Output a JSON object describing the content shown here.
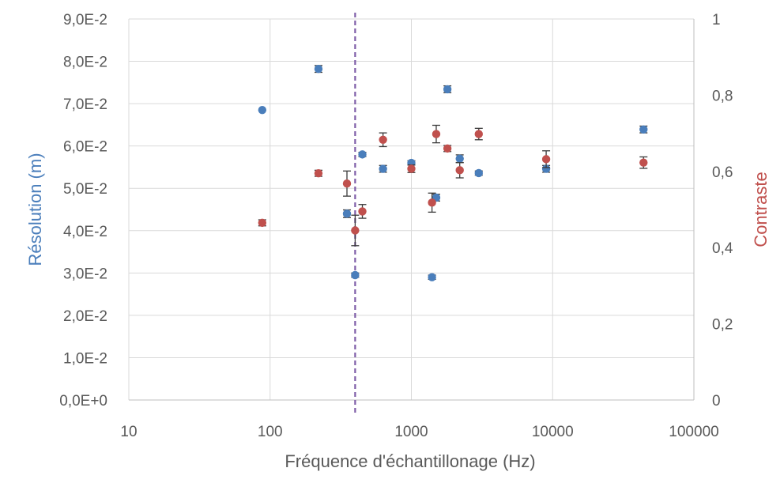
{
  "chart_data": {
    "type": "scatter",
    "xlabel": "Fréquence d'échantillonage (Hz)",
    "ylabel": "Résolution (m)",
    "y2label": "Contraste",
    "x_scale": "log",
    "xlim": [
      10,
      100000
    ],
    "x_ticks": [
      "10",
      "100",
      "1000",
      "10000",
      "100000"
    ],
    "ylim": [
      0,
      0.09
    ],
    "y_ticks": [
      "0,0E+0",
      "1,0E-2",
      "2,0E-2",
      "3,0E-2",
      "4,0E-2",
      "5,0E-2",
      "6,0E-2",
      "7,0E-2",
      "8,0E-2",
      "9,0E-2"
    ],
    "y2lim": [
      0,
      1
    ],
    "y2_ticks": [
      "0",
      "0,2",
      "0,4",
      "0,6",
      "0,8",
      "1"
    ],
    "grid": true,
    "reference_line_x": 400,
    "series": [
      {
        "axis": "left",
        "color": "#4a7ebb",
        "points": [
          {
            "x": 88,
            "y": 0.0685,
            "err": 0
          },
          {
            "x": 220,
            "y": 0.0782,
            "err": 0.0008
          },
          {
            "x": 350,
            "y": 0.044,
            "err": 0.0009
          },
          {
            "x": 400,
            "y": 0.0295,
            "err": 0.0005
          },
          {
            "x": 450,
            "y": 0.058,
            "err": 0.0005
          },
          {
            "x": 630,
            "y": 0.0546,
            "err": 0.0008
          },
          {
            "x": 1000,
            "y": 0.056,
            "err": 0.0005
          },
          {
            "x": 1400,
            "y": 0.029,
            "err": 0.0005
          },
          {
            "x": 1500,
            "y": 0.0478,
            "err": 0.0008
          },
          {
            "x": 1800,
            "y": 0.0734,
            "err": 0.0008
          },
          {
            "x": 2200,
            "y": 0.057,
            "err": 0.0009
          },
          {
            "x": 3000,
            "y": 0.0536,
            "err": 0.0005
          },
          {
            "x": 9000,
            "y": 0.0546,
            "err": 0.0008
          },
          {
            "x": 44000,
            "y": 0.0639,
            "err": 0.0008
          }
        ]
      },
      {
        "axis": "right",
        "color": "#c0504d",
        "points": [
          {
            "x": 88,
            "y": 0.465,
            "err": 0.008
          },
          {
            "x": 220,
            "y": 0.595,
            "err": 0.008
          },
          {
            "x": 350,
            "y": 0.568,
            "err": 0.033
          },
          {
            "x": 400,
            "y": 0.445,
            "err": 0.04
          },
          {
            "x": 450,
            "y": 0.495,
            "err": 0.018
          },
          {
            "x": 630,
            "y": 0.683,
            "err": 0.018
          },
          {
            "x": 1000,
            "y": 0.607,
            "err": 0.01
          },
          {
            "x": 1400,
            "y": 0.518,
            "err": 0.025
          },
          {
            "x": 1500,
            "y": 0.698,
            "err": 0.023
          },
          {
            "x": 1800,
            "y": 0.66,
            "err": 0.008
          },
          {
            "x": 2200,
            "y": 0.603,
            "err": 0.02
          },
          {
            "x": 3000,
            "y": 0.698,
            "err": 0.015
          },
          {
            "x": 9000,
            "y": 0.632,
            "err": 0.022
          },
          {
            "x": 44000,
            "y": 0.623,
            "err": 0.015
          }
        ]
      }
    ]
  }
}
